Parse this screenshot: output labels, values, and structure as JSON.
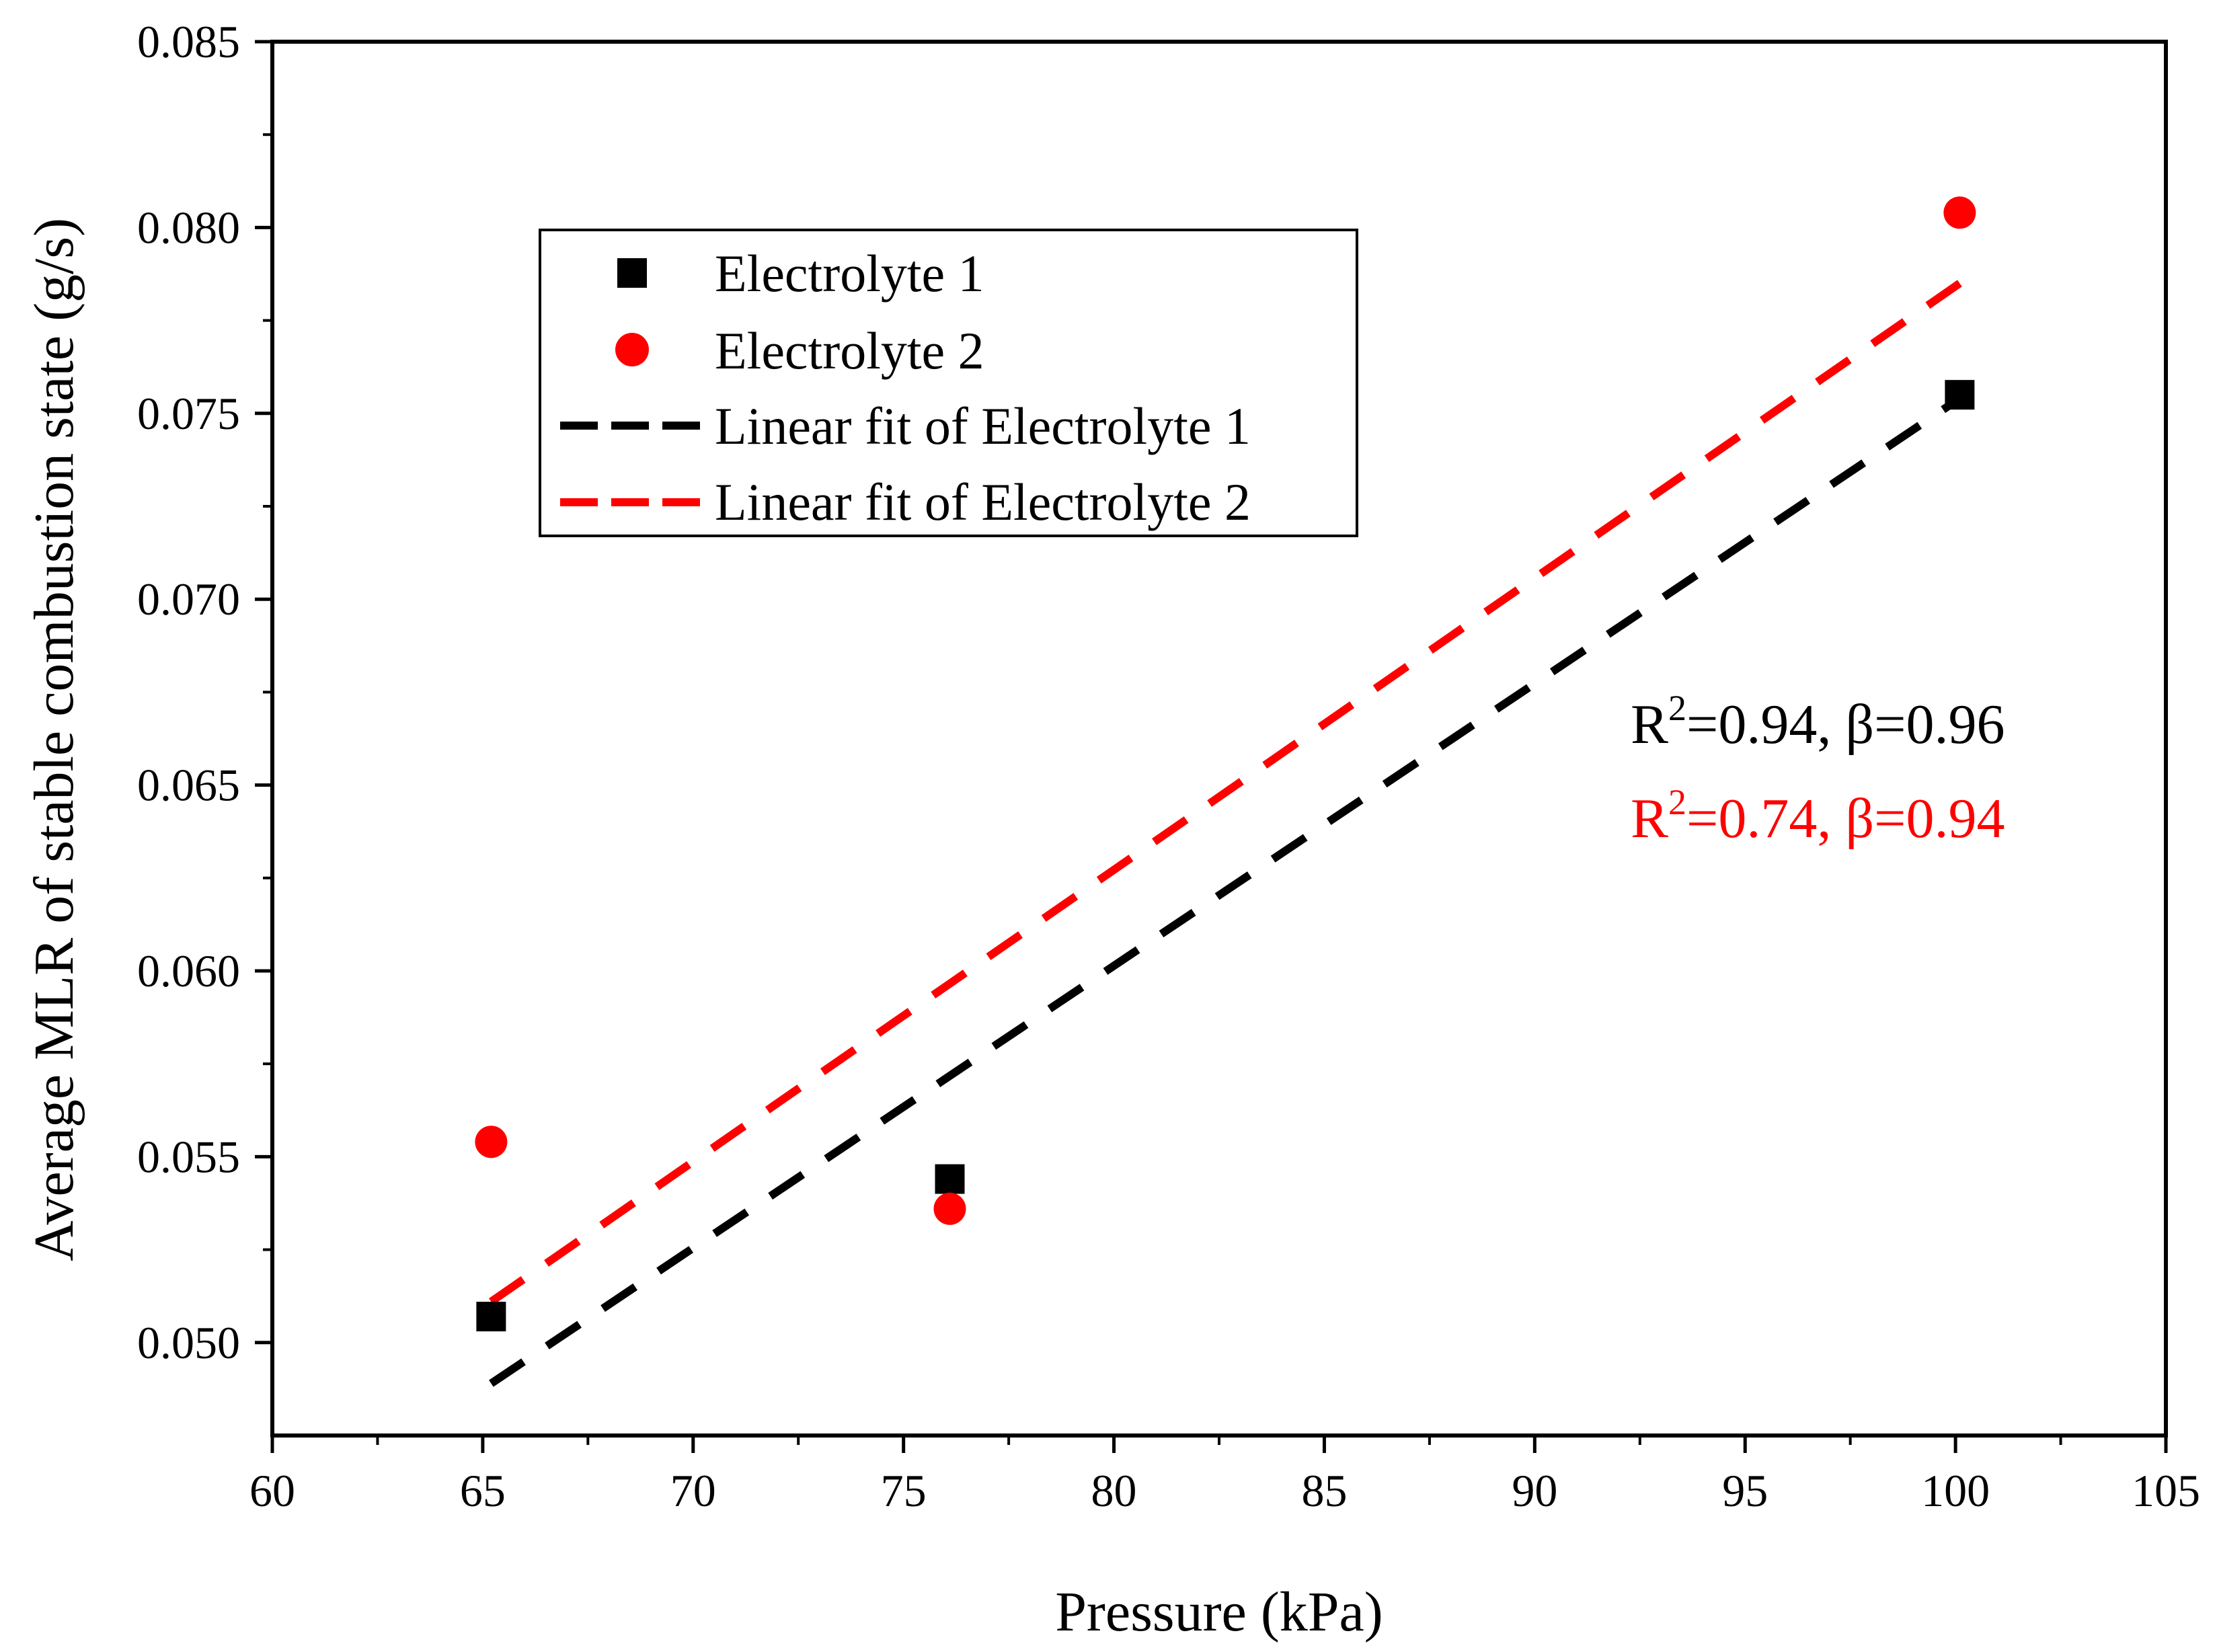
{
  "chart_data": {
    "type": "scatter",
    "title": "",
    "xlabel": "Pressure (kPa)",
    "ylabel": "Average MLR of stable combustion state (g/s)",
    "xlim": [
      60,
      105
    ],
    "ylim": [
      0.0475,
      0.085
    ],
    "x_ticks": [
      60,
      65,
      70,
      75,
      80,
      85,
      90,
      95,
      100,
      105
    ],
    "x_tick_labels": [
      "60",
      "65",
      "70",
      "75",
      "80",
      "85",
      "90",
      "95",
      "100",
      "105"
    ],
    "y_ticks": [
      0.05,
      0.055,
      0.06,
      0.065,
      0.07,
      0.075,
      0.08,
      0.085
    ],
    "y_tick_labels": [
      "0.050",
      "0.055",
      "0.060",
      "0.065",
      "0.070",
      "0.075",
      "0.080",
      "0.085"
    ],
    "grid": false,
    "legend_position": "top-left",
    "series": [
      {
        "name": "Electrolyte 1",
        "kind": "scatter",
        "marker": "square",
        "color": "#000000",
        "x": [
          65.2,
          76.1,
          100.1
        ],
        "y": [
          0.0507,
          0.0544,
          0.0755
        ]
      },
      {
        "name": "Electrolyte 2",
        "kind": "scatter",
        "marker": "circle",
        "color": "#ff0000",
        "x": [
          65.2,
          76.1,
          100.1
        ],
        "y": [
          0.0554,
          0.0536,
          0.0804
        ]
      }
    ],
    "fits": [
      {
        "name": "Linear fit of Electrolyte 1",
        "kind": "line",
        "dash": "dashed",
        "color": "#000000",
        "x": [
          65.2,
          100.1
        ],
        "y": [
          0.0489,
          0.0754
        ]
      },
      {
        "name": "Linear fit of Electrolyte 2",
        "kind": "line",
        "dash": "dashed",
        "color": "#ff0000",
        "x": [
          65.2,
          100.1
        ],
        "y": [
          0.0511,
          0.0785
        ]
      }
    ],
    "annotations": [
      {
        "prefix": "R",
        "sup": "2",
        "suffix": "=0.94, β=0.96",
        "color": "#000000"
      },
      {
        "prefix": "R",
        "sup": "2",
        "suffix": "=0.74, β=0.94",
        "color": "#ff0000"
      }
    ]
  }
}
